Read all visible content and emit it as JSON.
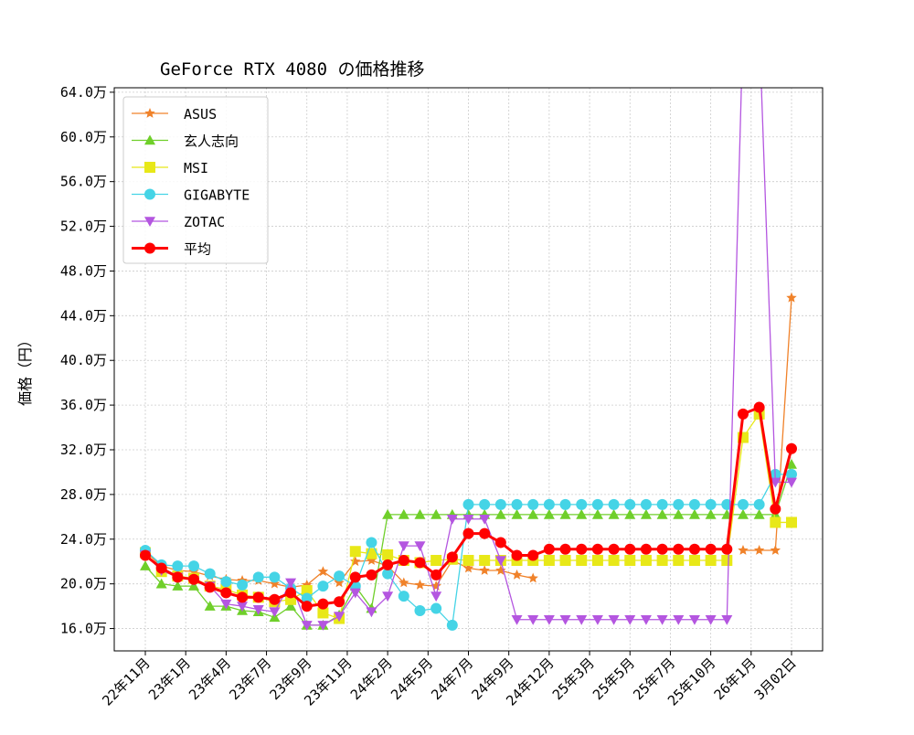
{
  "chart_data": {
    "type": "line",
    "title": "GeForce RTX 4080 の価格推移",
    "xlabel": "",
    "ylabel": "価格（円）",
    "ylim": [
      14,
      64.4
    ],
    "yticks": [
      16,
      20,
      24,
      28,
      32,
      36,
      40,
      44,
      48,
      52,
      56,
      60,
      64
    ],
    "ytick_labels": [
      "16.0万",
      "20.0万",
      "24.0万",
      "28.0万",
      "32.0万",
      "36.0万",
      "40.0万",
      "44.0万",
      "48.0万",
      "52.0万",
      "56.0万",
      "60.0万",
      "64.0万"
    ],
    "xtick_positions": [
      0,
      2.5,
      5,
      7.5,
      10,
      12.5,
      15,
      17.5,
      20,
      22.5,
      25,
      27.5,
      30,
      32.5,
      35,
      37.5,
      40
    ],
    "xtick_labels": [
      "22年11月",
      "23年1月",
      "23年4月",
      "23年7月",
      "23年9月",
      "23年11月",
      "24年2月",
      "24年5月",
      "24年7月",
      "24年9月",
      "24年12月",
      "25年3月",
      "25年5月",
      "25年7月",
      "25年10月",
      "26年1月",
      "3月02日"
    ],
    "grid": true,
    "legend": "top-left",
    "unit": "万円",
    "series": [
      {
        "name": "ASUS",
        "color": "#f0822a",
        "marker": "star",
        "values": [
          22.9,
          21.6,
          21.2,
          21.1,
          20.7,
          20.4,
          20.3,
          20.3,
          20.0,
          19.7,
          19.9,
          21.1,
          20.1,
          22.0,
          22.1,
          21.6,
          20.1,
          19.9,
          19.8,
          22.1,
          21.4,
          21.2,
          21.2,
          20.8,
          20.5,
          null,
          null,
          null,
          null,
          null,
          null,
          null,
          null,
          null,
          null,
          null,
          null,
          23.0,
          23.0,
          23.0,
          45.6
        ]
      },
      {
        "name": "玄人志向",
        "color": "#6fcf2a",
        "marker": "triangle-up",
        "values": [
          21.6,
          20.0,
          19.8,
          19.8,
          18.0,
          18.0,
          17.6,
          17.5,
          17.0,
          18.0,
          16.3,
          16.3,
          17.2,
          19.8,
          17.8,
          26.2,
          26.2,
          26.2,
          26.2,
          26.2,
          26.2,
          26.2,
          26.2,
          26.2,
          26.2,
          26.2,
          26.2,
          26.2,
          26.2,
          26.2,
          26.2,
          26.2,
          26.2,
          26.2,
          26.2,
          26.2,
          26.2,
          26.2,
          26.2,
          26.2,
          30.7
        ]
      },
      {
        "name": "MSI",
        "color": "#e8e818",
        "marker": "square",
        "values": [
          22.8,
          21.1,
          20.7,
          20.5,
          19.8,
          19.5,
          19.0,
          18.8,
          18.4,
          18.6,
          19.4,
          17.4,
          16.9,
          22.9,
          22.7,
          22.6,
          22.1,
          21.9,
          22.1,
          22.2,
          22.1,
          22.1,
          22.1,
          22.1,
          22.1,
          22.1,
          22.1,
          22.1,
          22.1,
          22.1,
          22.1,
          22.1,
          22.1,
          22.1,
          22.1,
          22.1,
          22.1,
          33.1,
          35.2,
          25.5,
          25.5
        ]
      },
      {
        "name": "GIGABYTE",
        "color": "#45d4e6",
        "marker": "circle",
        "values": [
          23.0,
          21.7,
          21.6,
          21.6,
          20.9,
          20.2,
          19.9,
          20.6,
          20.6,
          19.6,
          18.7,
          19.8,
          20.7,
          19.8,
          23.7,
          20.9,
          18.9,
          17.6,
          17.8,
          16.3,
          27.1,
          27.1,
          27.1,
          27.1,
          27.1,
          27.1,
          27.1,
          27.1,
          27.1,
          27.1,
          27.1,
          27.1,
          27.1,
          27.1,
          27.1,
          27.1,
          27.1,
          27.1,
          27.1,
          29.8,
          29.8
        ]
      },
      {
        "name": "ZOTAC",
        "color": "#b456e0",
        "marker": "triangle-down",
        "values": [
          22.6,
          21.2,
          20.6,
          20.3,
          19.8,
          18.2,
          18.0,
          17.7,
          17.5,
          20.1,
          16.3,
          16.3,
          17.1,
          19.2,
          17.5,
          18.9,
          23.4,
          23.4,
          18.9,
          25.8,
          25.8,
          25.8,
          22.1,
          16.8,
          16.8,
          16.8,
          16.8,
          16.8,
          16.8,
          16.8,
          16.8,
          16.8,
          16.8,
          16.8,
          16.8,
          16.8,
          16.8,
          70.0,
          70.0,
          29.1,
          29.1
        ]
      },
      {
        "name": "平均",
        "color": "#ff0000",
        "marker": "circle",
        "bold": true,
        "values": [
          22.55,
          21.4,
          20.6,
          20.4,
          19.7,
          19.2,
          18.8,
          18.8,
          18.6,
          19.2,
          18.0,
          18.2,
          18.4,
          20.6,
          20.8,
          21.7,
          22.1,
          21.9,
          20.8,
          22.4,
          24.5,
          24.5,
          23.7,
          22.55,
          22.55,
          23.1,
          23.1,
          23.1,
          23.1,
          23.1,
          23.1,
          23.1,
          23.1,
          23.1,
          23.1,
          23.1,
          23.1,
          35.2,
          35.8,
          26.7,
          32.1
        ]
      }
    ]
  }
}
